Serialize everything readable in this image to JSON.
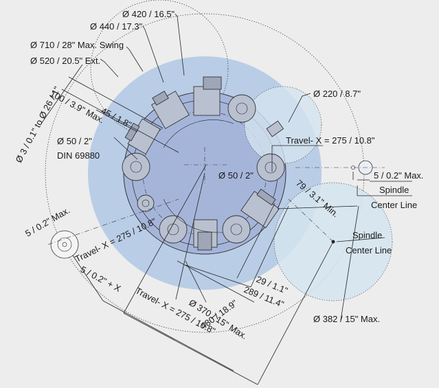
{
  "labels": {
    "d420": "Ø 420 / 16.5\"",
    "d440": "Ø 440 / 17.3\"",
    "d710": "Ø 710 / 28\" Max. Swing",
    "d520": "Ø 520 / 20.5\" Ext.",
    "d3": "Ø 3 / 0.1\" to Ø 26 / 1\"",
    "d100": "100 / 3.9\" Max.",
    "d45": "45 / 1.8\"",
    "d50a": "Ø 50 / 2\"",
    "din": "DIN 69880",
    "d220": "Ø 220 / 8.7\"",
    "travel_x_top": "Travel- X = 275 / 10.8\"",
    "d50b": "Ø 50 / 2\"",
    "five_max_right": "5 / 0.2\" Max.",
    "spindle_r1": "Spindle",
    "center_line_r1": "Center Line",
    "d79": "79 / 3.1\" Min.",
    "spindle_r2": "Spindle",
    "center_line_r2": "Center Line",
    "five_max_left": "5 / 0.2\" Max.",
    "travel_x_left": "Travel- X = 275 / 10.8\"",
    "five_plus_x": "5 / 0.2\" + X",
    "travel_x_bottom": "Travel- X = 275 / 10.8\"",
    "d29": "29 / 1.1\"",
    "d289": "289 / 11.4\"",
    "d370": "Ø 370 / 15\" Max.",
    "d382": "Ø 382 / 15\" Max.",
    "d480": "480 / 18.9\""
  },
  "colors": {
    "background": "#ededed",
    "swing_circle": "#b9cde6",
    "turret_disc": "#a5b5da",
    "spindle_circle": "#d4e4ef",
    "tool_fill": "#b9c0cf"
  }
}
